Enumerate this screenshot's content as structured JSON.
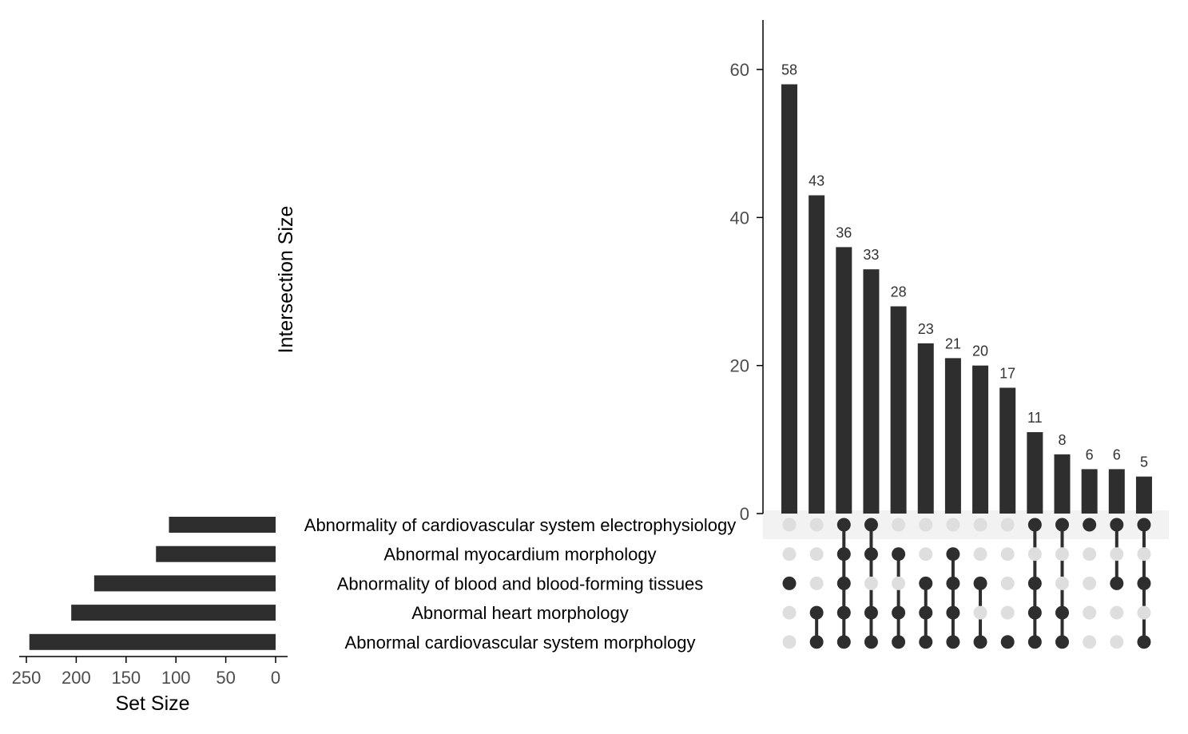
{
  "chart_data": {
    "type": "upset",
    "ylabel": "Intersection Size",
    "xlabel_sets": "Set Size",
    "bar_color": "#2e2e2e",
    "dot_inactive_color": "#dedede",
    "stripe_color": "#f2f2f2",
    "sets": [
      "Abnormality of cardiovascular system electrophysiology",
      "Abnormal myocardium morphology",
      "Abnormality of blood and blood-forming tissues",
      "Abnormal heart morphology",
      "Abnormal cardiovascular system morphology"
    ],
    "set_sizes": [
      107,
      120,
      182,
      205,
      247
    ],
    "set_size_ticks": [
      "250",
      "200",
      "150",
      "100",
      "50",
      "0"
    ],
    "set_size_lim": [
      0,
      250
    ],
    "intersection_ticks": [
      "0",
      "20",
      "40",
      "60"
    ],
    "intersection_lim": [
      0,
      60
    ],
    "intersections": [
      {
        "size": 58,
        "label": "58",
        "sets": [
          2
        ]
      },
      {
        "size": 43,
        "label": "43",
        "sets": [
          3,
          4
        ]
      },
      {
        "size": 36,
        "label": "36",
        "sets": [
          0,
          1,
          2,
          3,
          4
        ]
      },
      {
        "size": 33,
        "label": "33",
        "sets": [
          0,
          1,
          3,
          4
        ]
      },
      {
        "size": 28,
        "label": "28",
        "sets": [
          1,
          3,
          4
        ]
      },
      {
        "size": 23,
        "label": "23",
        "sets": [
          2,
          3,
          4
        ]
      },
      {
        "size": 21,
        "label": "21",
        "sets": [
          1,
          2,
          3,
          4
        ]
      },
      {
        "size": 20,
        "label": "20",
        "sets": [
          2,
          4
        ]
      },
      {
        "size": 17,
        "label": "17",
        "sets": [
          4
        ]
      },
      {
        "size": 11,
        "label": "11",
        "sets": [
          0,
          2,
          3,
          4
        ]
      },
      {
        "size": 8,
        "label": "8",
        "sets": [
          0,
          3,
          4
        ]
      },
      {
        "size": 6,
        "label": "6",
        "sets": [
          0
        ]
      },
      {
        "size": 6,
        "label": "6",
        "sets": [
          0,
          2
        ]
      },
      {
        "size": 5,
        "label": "5",
        "sets": [
          0,
          2,
          4
        ]
      }
    ]
  }
}
